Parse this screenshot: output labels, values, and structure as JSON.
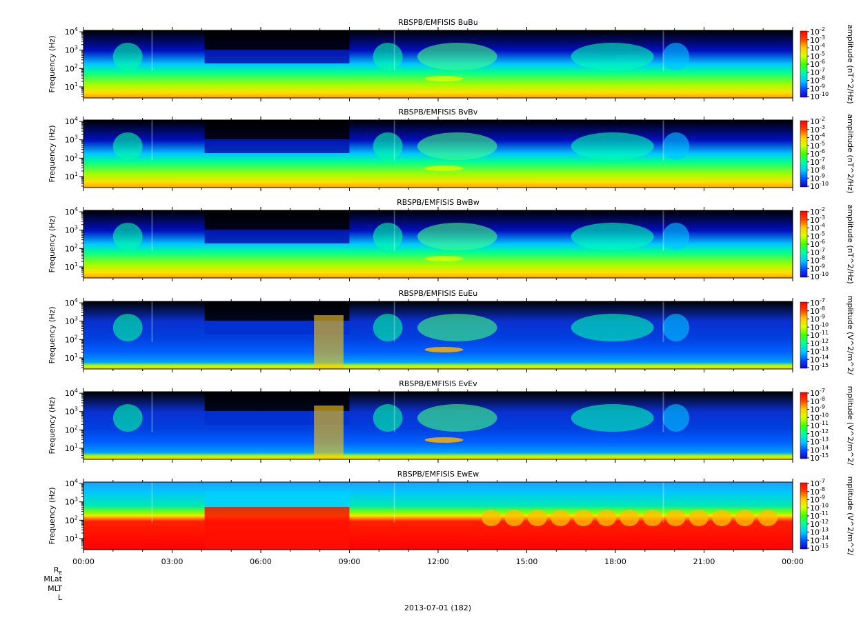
{
  "figure": {
    "date_label": "2013-07-01 (182)",
    "ephemeris_labels": [
      "R",
      "MLat",
      "MLT",
      "L"
    ],
    "ephemeris_subscript": "E"
  },
  "chart_data": [
    {
      "type": "heatmap",
      "title": "RBSPB/EMFISIS  BuBu",
      "ylabel": "Frequency (Hz)",
      "yscale": "log",
      "ylim": [
        2.5,
        12000
      ],
      "y_ticks": [
        "10^1",
        "10^2",
        "10^3",
        "10^4"
      ],
      "colorbar_label": "amplitude (nT^2/Hz)",
      "colorbar_scale": "log",
      "colorbar_range": [
        1e-10,
        0.01
      ],
      "colorbar_ticks": [
        "10^-2",
        "10^-3",
        "10^-4",
        "10^-5",
        "10^-6",
        "10^-7",
        "10^-8",
        "10^-9",
        "10^-10"
      ]
    },
    {
      "type": "heatmap",
      "title": "RBSPB/EMFISIS  BvBv",
      "ylabel": "Frequency (Hz)",
      "yscale": "log",
      "ylim": [
        2.5,
        12000
      ],
      "y_ticks": [
        "10^1",
        "10^2",
        "10^3",
        "10^4"
      ],
      "colorbar_label": "amplitude (nT^2/Hz)",
      "colorbar_scale": "log",
      "colorbar_range": [
        1e-10,
        0.01
      ],
      "colorbar_ticks": [
        "10^-2",
        "10^-3",
        "10^-4",
        "10^-5",
        "10^-6",
        "10^-7",
        "10^-8",
        "10^-9",
        "10^-10"
      ]
    },
    {
      "type": "heatmap",
      "title": "RBSPB/EMFISIS  BwBw",
      "ylabel": "Frequency (Hz)",
      "yscale": "log",
      "ylim": [
        2.5,
        12000
      ],
      "y_ticks": [
        "10^1",
        "10^2",
        "10^3",
        "10^4"
      ],
      "colorbar_label": "amplitude (nT^2/Hz)",
      "colorbar_scale": "log",
      "colorbar_range": [
        1e-10,
        0.01
      ],
      "colorbar_ticks": [
        "10^-2",
        "10^-3",
        "10^-4",
        "10^-5",
        "10^-6",
        "10^-7",
        "10^-8",
        "10^-9",
        "10^-10"
      ]
    },
    {
      "type": "heatmap",
      "title": "RBSPB/EMFISIS  EuEu",
      "ylabel": "Frequency (Hz)",
      "yscale": "log",
      "ylim": [
        2.5,
        12000
      ],
      "y_ticks": [
        "10^1",
        "10^2",
        "10^3",
        "10^4"
      ],
      "colorbar_label": "mplitude (V^2/m^2/",
      "colorbar_scale": "log",
      "colorbar_range": [
        1e-15,
        1e-07
      ],
      "colorbar_ticks": [
        "10^-7",
        "10^-8",
        "10^-9",
        "10^-10",
        "10^-11",
        "10^-12",
        "10^-13",
        "10^-14",
        "10^-15"
      ]
    },
    {
      "type": "heatmap",
      "title": "RBSPB/EMFISIS  EvEv",
      "ylabel": "Frequency (Hz)",
      "yscale": "log",
      "ylim": [
        2.5,
        12000
      ],
      "y_ticks": [
        "10^1",
        "10^2",
        "10^3",
        "10^4"
      ],
      "colorbar_label": "mplitude (V^2/m^2/",
      "colorbar_scale": "log",
      "colorbar_range": [
        1e-15,
        1e-07
      ],
      "colorbar_ticks": [
        "10^-7",
        "10^-8",
        "10^-9",
        "10^-10",
        "10^-11",
        "10^-12",
        "10^-13",
        "10^-14",
        "10^-15"
      ]
    },
    {
      "type": "heatmap",
      "title": "RBSPB/EMFISIS  EwEw",
      "ylabel": "Frequency (Hz)",
      "yscale": "log",
      "ylim": [
        2.5,
        12000
      ],
      "y_ticks": [
        "10^1",
        "10^2",
        "10^3",
        "10^4"
      ],
      "colorbar_label": "mplitude (V^2/m^2/",
      "colorbar_scale": "log",
      "colorbar_range": [
        1e-15,
        1e-07
      ],
      "colorbar_ticks": [
        "10^-7",
        "10^-8",
        "10^-9",
        "10^-10",
        "10^-11",
        "10^-12",
        "10^-13",
        "10^-14",
        "10^-15"
      ]
    }
  ],
  "x_axis": {
    "scale": "time",
    "range": [
      "2013-07-01 00:00",
      "2013-07-02 00:00"
    ],
    "tick_labels": [
      "00:00",
      "03:00",
      "06:00",
      "09:00",
      "12:00",
      "15:00",
      "18:00",
      "21:00",
      "00:00"
    ]
  },
  "colors": {
    "palette": [
      "#000000",
      "#1a00c8",
      "#0050ff",
      "#00c8ff",
      "#00ffa0",
      "#40ff00",
      "#d8ff00",
      "#ffc800",
      "#ff4000",
      "#ff0000"
    ]
  }
}
